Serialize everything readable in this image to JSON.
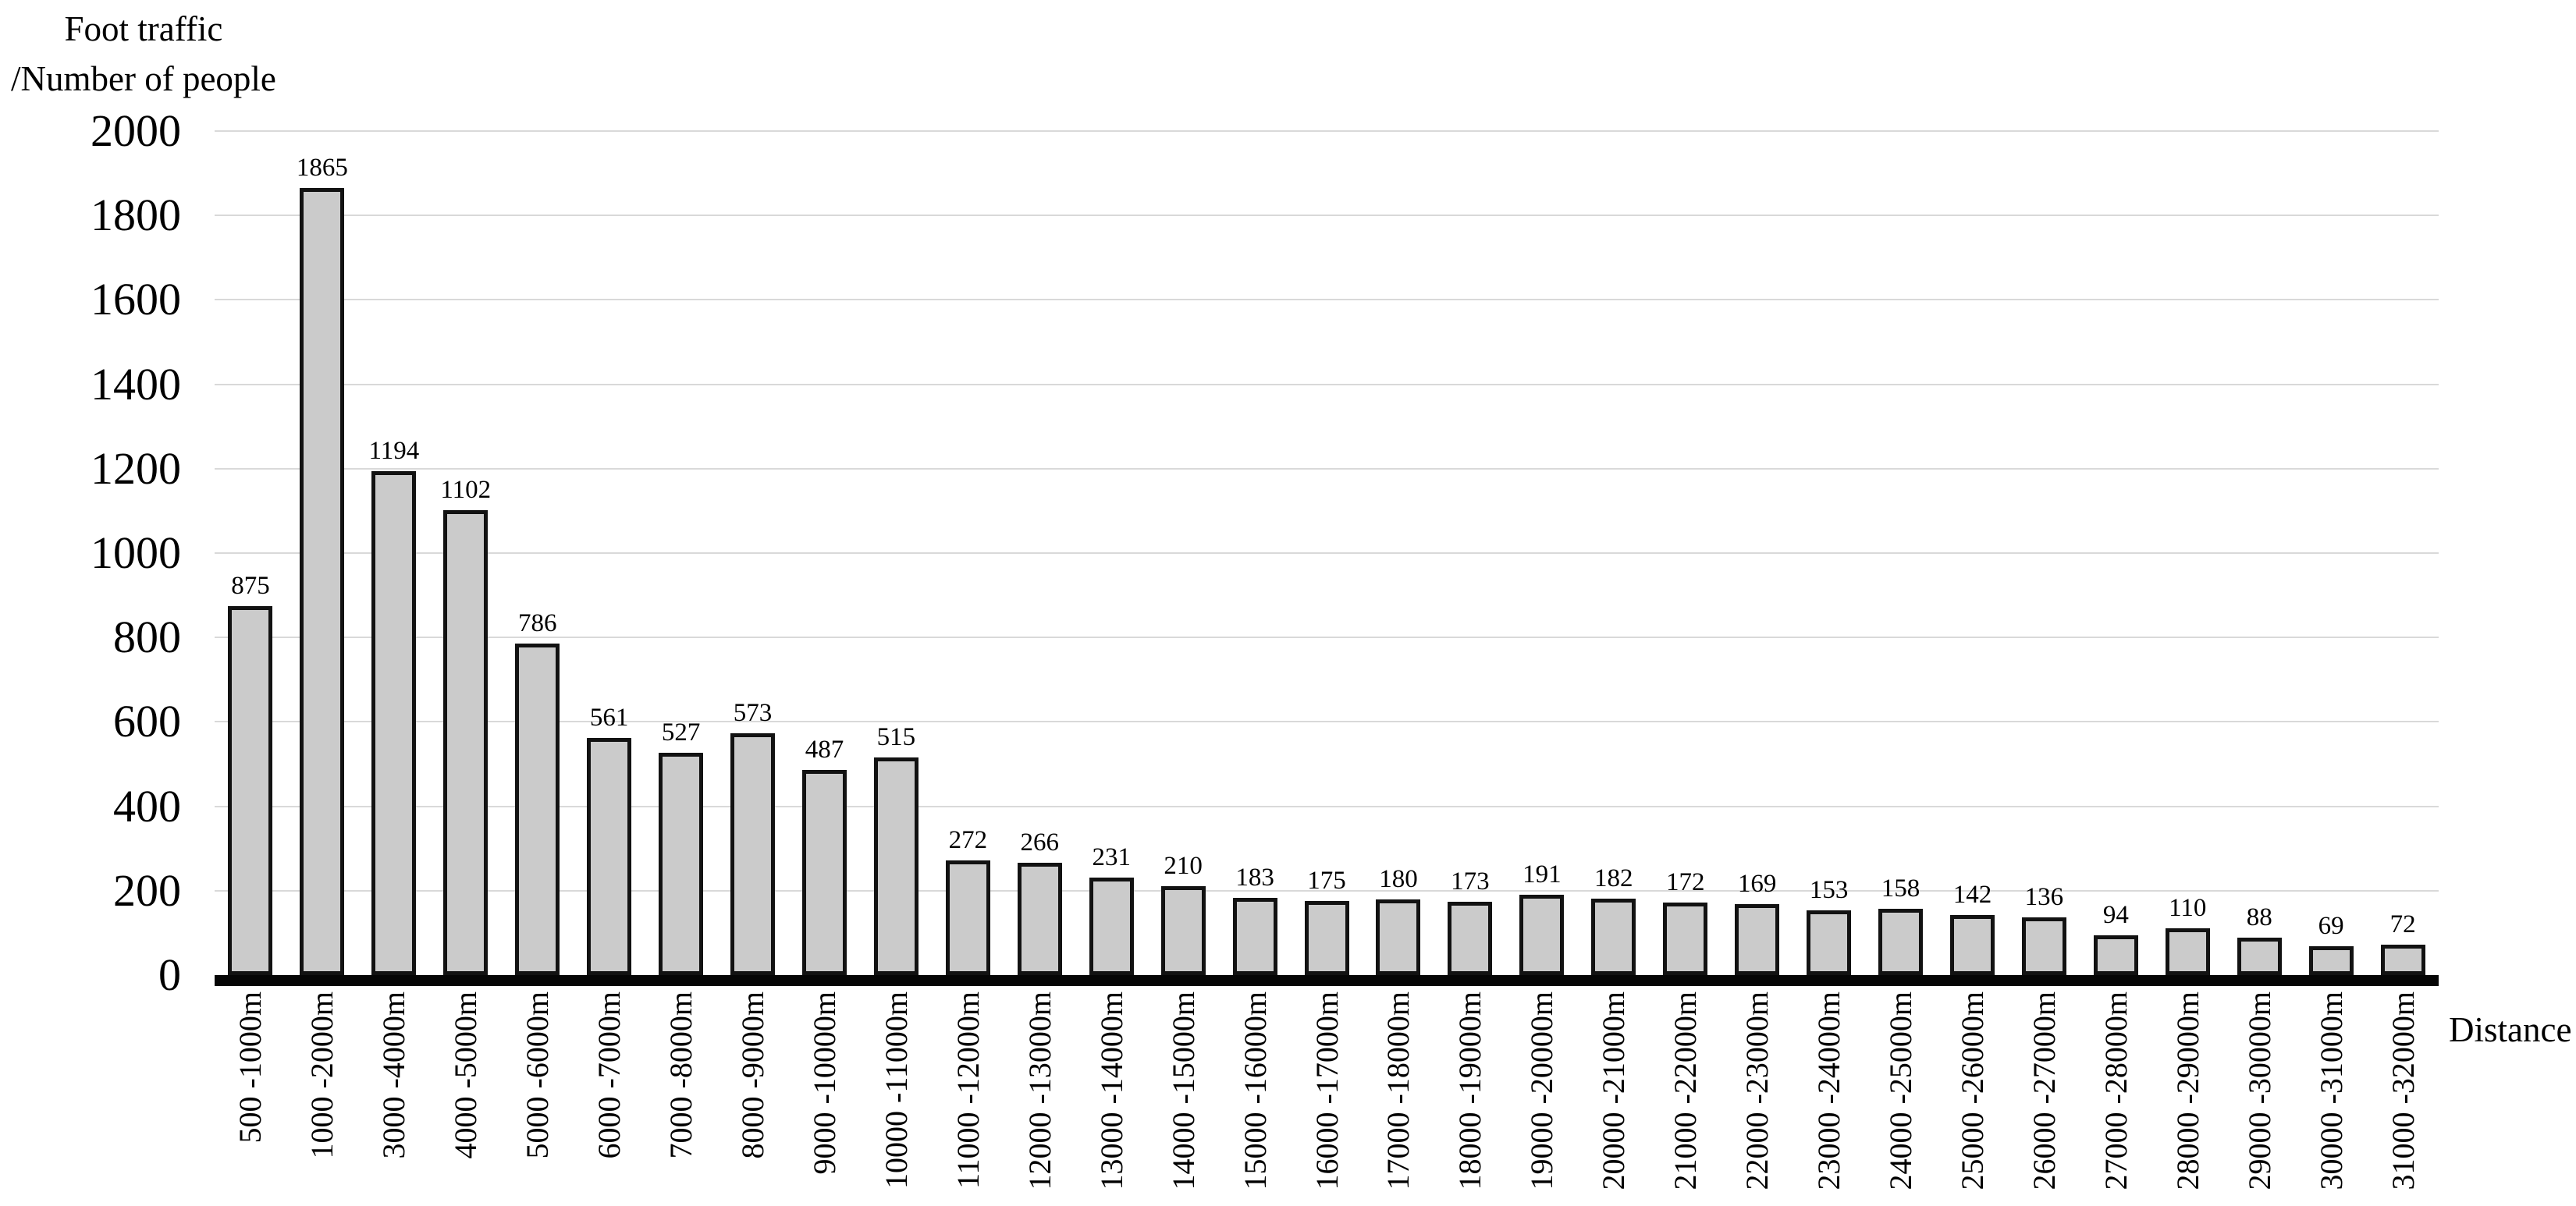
{
  "chart_data": {
    "type": "bar",
    "y_axis_title_line1": "Foot traffic",
    "y_axis_title_line2": "/Number of people",
    "x_axis_title": "Distance",
    "categories": [
      "500 -1000m",
      "1000 -2000m",
      "3000 -4000m",
      "4000 -5000m",
      "5000 -6000m",
      "6000 -7000m",
      "7000 -8000m",
      "8000 -9000m",
      "9000 -10000m",
      "10000 -11000m",
      "11000 -12000m",
      "12000 -13000m",
      "13000 -14000m",
      "14000 -15000m",
      "15000 -16000m",
      "16000 -17000m",
      "17000 -18000m",
      "18000 -19000m",
      "19000 -20000m",
      "20000 -21000m",
      "21000 -22000m",
      "22000 -23000m",
      "23000 -24000m",
      "24000 -25000m",
      "25000 -26000m",
      "26000 -27000m",
      "27000 -28000m",
      "28000 -29000m",
      "29000 -30000m",
      "30000 -31000m",
      "31000 -32000m"
    ],
    "values": [
      875,
      1865,
      1194,
      1102,
      786,
      561,
      527,
      573,
      487,
      515,
      272,
      266,
      231,
      210,
      183,
      175,
      180,
      173,
      191,
      182,
      172,
      169,
      153,
      158,
      142,
      136,
      94,
      110,
      88,
      69,
      72
    ],
    "yticks": [
      2000,
      1800,
      1600,
      1400,
      1200,
      1000,
      800,
      600,
      400,
      200,
      0
    ],
    "ylim": [
      0,
      2000
    ],
    "grid": "horizontal",
    "legend": "none",
    "bar_fill": "#cbcbcb",
    "bar_border": "#121212",
    "gridline_color": "#d9d9d9",
    "axis_color": "#050505",
    "text_color": "#000000"
  }
}
